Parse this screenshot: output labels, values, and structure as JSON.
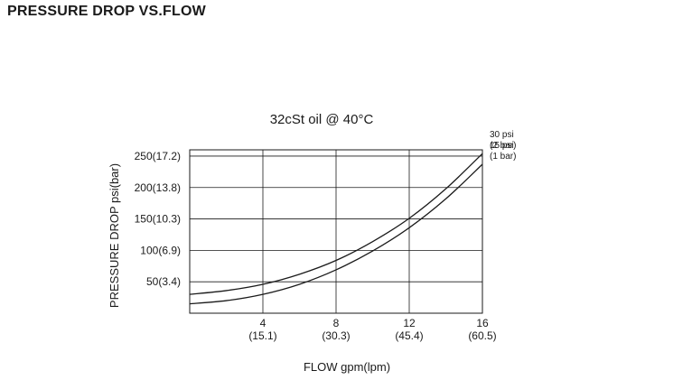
{
  "page": {
    "heading": "PRESSURE DROP VS.FLOW"
  },
  "chart_data": {
    "type": "line",
    "title": "32cSt oil @ 40°C",
    "xlabel": "FLOW gpm(lpm)",
    "ylabel": "PRESSURE DROP psi(bar)",
    "xlim": [
      0,
      16
    ],
    "ylim": [
      0,
      260
    ],
    "grid": true,
    "legend_placement": "right",
    "x_ticks": [
      {
        "value": 4,
        "label": "4",
        "sublabel": "(15.1)"
      },
      {
        "value": 8,
        "label": "8",
        "sublabel": "(30.3)"
      },
      {
        "value": 12,
        "label": "12",
        "sublabel": "(45.4)"
      },
      {
        "value": 16,
        "label": "16",
        "sublabel": "(60.5)"
      }
    ],
    "y_ticks": [
      {
        "value": 50,
        "label": "50(3.4)"
      },
      {
        "value": 100,
        "label": "100(6.9)"
      },
      {
        "value": 150,
        "label": "150(10.3)"
      },
      {
        "value": 200,
        "label": "200(13.8)"
      },
      {
        "value": 250,
        "label": "250(17.2)"
      }
    ],
    "series": [
      {
        "name": "30 psi",
        "name_sub": "(2 bar)",
        "x": [
          0,
          2,
          4,
          6,
          8,
          10,
          12,
          14,
          16
        ],
        "y": [
          30,
          36,
          46,
          62,
          84,
          114,
          151,
          198,
          254
        ]
      },
      {
        "name": "15 psi",
        "name_sub": "(1 bar)",
        "x": [
          0,
          2,
          4,
          6,
          8,
          10,
          12,
          14,
          16
        ],
        "y": [
          15,
          20,
          30,
          46,
          69,
          99,
          136,
          182,
          237
        ]
      }
    ]
  }
}
